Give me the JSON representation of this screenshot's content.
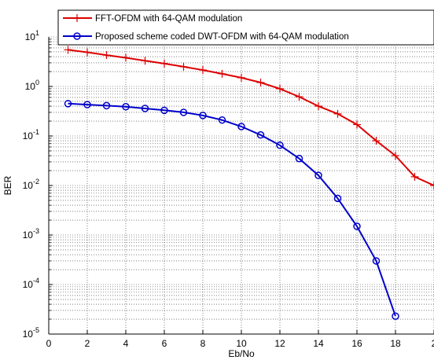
{
  "chart_data": {
    "type": "line",
    "xlabel": "Eb/No",
    "ylabel": "BER",
    "yscale": "log",
    "xlim": [
      0,
      20
    ],
    "ylim_exponents": [
      -5,
      1
    ],
    "x_ticks": [
      "0",
      "2",
      "4",
      "6",
      "8",
      "10",
      "12",
      "14",
      "16",
      "18",
      "2"
    ],
    "y_ticks": [
      {
        "base": "10",
        "exp": "1"
      },
      {
        "base": "10",
        "exp": "0"
      },
      {
        "base": "10",
        "exp": "-1"
      },
      {
        "base": "10",
        "exp": "-2"
      },
      {
        "base": "10",
        "exp": "-3"
      },
      {
        "base": "10",
        "exp": "-4"
      },
      {
        "base": "10",
        "exp": "-5"
      }
    ],
    "grid": true,
    "legend_position": "top",
    "series": [
      {
        "name": "FFT-OFDM with 64-QAM modulation",
        "color": "#dd0000",
        "marker": "plus",
        "x": [
          1,
          2,
          3,
          4,
          5,
          6,
          7,
          8,
          9,
          10,
          11,
          12,
          13,
          14,
          15,
          16,
          17,
          18,
          19,
          20
        ],
        "y": [
          5.5,
          4.9,
          4.3,
          3.8,
          3.3,
          2.9,
          2.5,
          2.15,
          1.8,
          1.5,
          1.2,
          0.9,
          0.62,
          0.4,
          0.28,
          0.17,
          0.08,
          0.04,
          0.015,
          0.01
        ]
      },
      {
        "name": "Proposed scheme coded DWT-OFDM with 64-QAM modulation",
        "color": "#0000cc",
        "marker": "circle",
        "x": [
          1,
          2,
          3,
          4,
          5,
          6,
          7,
          8,
          9,
          10,
          11,
          12,
          13,
          14,
          15,
          16,
          17,
          18
        ],
        "y": [
          0.45,
          0.43,
          0.41,
          0.39,
          0.36,
          0.33,
          0.3,
          0.26,
          0.21,
          0.155,
          0.105,
          0.065,
          0.035,
          0.016,
          0.0055,
          0.0015,
          0.0003,
          2.3e-05
        ]
      }
    ]
  }
}
